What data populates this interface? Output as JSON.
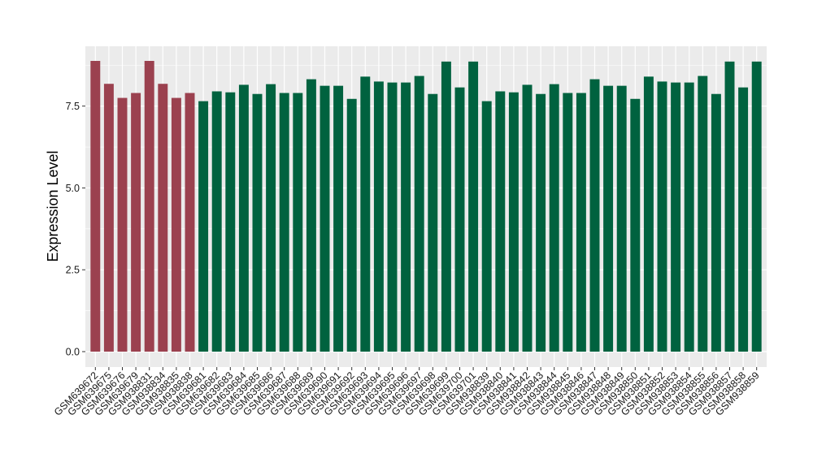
{
  "chart_data": {
    "type": "bar",
    "title": "",
    "xlabel": "",
    "ylabel": "Expression Level",
    "ylim": [
      0,
      9.2
    ],
    "yticks": [
      0.0,
      2.5,
      5.0,
      7.5
    ],
    "ytick_labels": [
      "0.0",
      "2.5",
      "5.0",
      "7.5"
    ],
    "grid": true,
    "legend": "none",
    "panel_background": "#ebebeb",
    "grid_color": "#ffffff",
    "group_colors": [
      "#9b414f",
      "#00623f"
    ],
    "categories": [
      "GSM639672",
      "GSM639675",
      "GSM639676",
      "GSM639679",
      "GSM938831",
      "GSM938834",
      "GSM938835",
      "GSM938838",
      "GSM639681",
      "GSM639682",
      "GSM639683",
      "GSM639684",
      "GSM639685",
      "GSM639686",
      "GSM639687",
      "GSM639688",
      "GSM639689",
      "GSM639690",
      "GSM639691",
      "GSM639692",
      "GSM639693",
      "GSM639694",
      "GSM639695",
      "GSM639696",
      "GSM639697",
      "GSM639698",
      "GSM639699",
      "GSM639700",
      "GSM639701",
      "GSM938839",
      "GSM938840",
      "GSM938841",
      "GSM938842",
      "GSM938843",
      "GSM938844",
      "GSM938845",
      "GSM938846",
      "GSM938847",
      "GSM938848",
      "GSM938849",
      "GSM938850",
      "GSM938851",
      "GSM938852",
      "GSM938853",
      "GSM938854",
      "GSM938855",
      "GSM938856",
      "GSM938857",
      "GSM938858",
      "GSM938859"
    ],
    "values": [
      8.88,
      8.18,
      7.75,
      7.9,
      8.88,
      8.18,
      7.75,
      7.9,
      7.65,
      7.95,
      7.92,
      8.15,
      7.87,
      8.17,
      7.9,
      7.9,
      8.32,
      8.12,
      8.12,
      7.72,
      8.4,
      8.25,
      8.22,
      8.22,
      8.42,
      7.87,
      8.86,
      8.07,
      8.86,
      7.65,
      7.95,
      7.92,
      8.15,
      7.87,
      8.17,
      7.9,
      7.9,
      8.32,
      8.12,
      8.12,
      7.72,
      8.4,
      8.25,
      8.22,
      8.22,
      8.42,
      7.87,
      8.86,
      8.07,
      8.86
    ],
    "groups": [
      0,
      0,
      0,
      0,
      0,
      0,
      0,
      0,
      1,
      1,
      1,
      1,
      1,
      1,
      1,
      1,
      1,
      1,
      1,
      1,
      1,
      1,
      1,
      1,
      1,
      1,
      1,
      1,
      1,
      1,
      1,
      1,
      1,
      1,
      1,
      1,
      1,
      1,
      1,
      1,
      1,
      1,
      1,
      1,
      1,
      1,
      1,
      1,
      1,
      1
    ]
  }
}
